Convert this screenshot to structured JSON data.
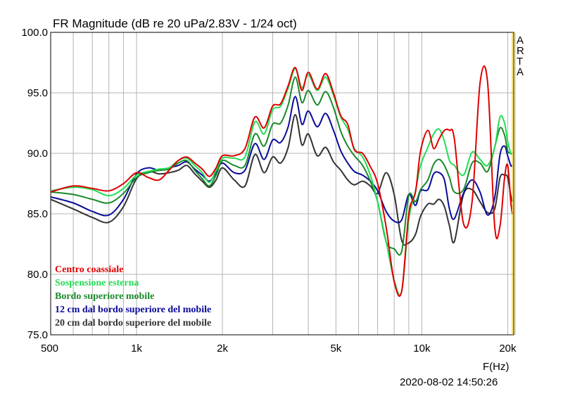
{
  "chart_data": {
    "type": "line",
    "title": "FR Magnitude (dB re 20 uPa/2.83V - 1/24 oct)",
    "xlabel": "F(Hz)",
    "x_scale": "log",
    "xlim": [
      500,
      21000
    ],
    "ylim": [
      75,
      100
    ],
    "x_tick_values": [
      500,
      1000,
      2000,
      5000,
      10000,
      20000
    ],
    "x_tick_labels": [
      "500",
      "1k",
      "2k",
      "5k",
      "10k",
      "20k"
    ],
    "y_tick_values": [
      75,
      80,
      85,
      90,
      95,
      100
    ],
    "y_tick_labels": [
      "75.0",
      "80.0",
      "85.0",
      "90.0",
      "95.0",
      "100.0"
    ],
    "grid": true,
    "legend_position": "bottom-left",
    "watermark": [
      "A",
      "R",
      "T",
      "A"
    ],
    "timestamp": "2020-08-02  14:50:26",
    "series": [
      {
        "name": "Centro coassiale",
        "color": "#e00000",
        "x": [
          500,
          600,
          700,
          800,
          900,
          1000,
          1100,
          1200,
          1300,
          1400,
          1500,
          1600,
          1700,
          1800,
          1900,
          2000,
          2200,
          2400,
          2600,
          2800,
          3000,
          3200,
          3400,
          3600,
          3800,
          4000,
          4300,
          4600,
          4900,
          5200,
          5500,
          5800,
          6200,
          6600,
          7000,
          7500,
          8000,
          8500,
          9000,
          9500,
          9900,
          10500,
          11000,
          11500,
          12000,
          12500,
          13000,
          14000,
          15000,
          16000,
          17000,
          18000,
          18800,
          19500,
          20000,
          20500,
          21000
        ],
        "y": [
          86.8,
          87.3,
          87.1,
          86.9,
          87.5,
          88.4,
          88.0,
          87.8,
          88.6,
          89.4,
          89.7,
          89.2,
          88.7,
          88.1,
          88.8,
          89.8,
          89.8,
          90.4,
          93.0,
          92.1,
          93.9,
          94.1,
          95.6,
          97.1,
          95.2,
          96.7,
          95.3,
          96.6,
          95.0,
          93.1,
          92.4,
          90.3,
          90.0,
          88.9,
          87.5,
          83.9,
          79.4,
          78.6,
          85.0,
          86.8,
          90.2,
          91.9,
          90.4,
          91.2,
          91.9,
          91.9,
          91.2,
          84.2,
          86.0,
          95.8,
          95.9,
          84.0,
          84.0,
          88.0,
          89.0,
          86.0,
          85.0
        ],
        "y_note": "visual trace"
      },
      {
        "name": "Sospensione esterna",
        "color": "#22dd55",
        "x": [
          500,
          600,
          700,
          800,
          900,
          1000,
          1100,
          1200,
          1300,
          1400,
          1500,
          1600,
          1700,
          1800,
          1900,
          2000,
          2200,
          2400,
          2600,
          2800,
          3000,
          3200,
          3400,
          3600,
          3800,
          4000,
          4300,
          4600,
          4900,
          5200,
          5500,
          5800,
          6200,
          6600,
          7000,
          7500,
          8000,
          8500,
          9000,
          9500,
          9900,
          10500,
          11000,
          11500,
          12000,
          12500,
          13000,
          14000,
          15000,
          16000,
          17000,
          18000,
          18800,
          19500,
          20000,
          20500,
          21000
        ],
        "y": [
          86.9,
          87.2,
          87.0,
          86.5,
          87.1,
          88.2,
          88.5,
          88.7,
          88.8,
          89.4,
          89.6,
          89.0,
          88.4,
          87.6,
          88.6,
          89.6,
          89.6,
          89.7,
          92.6,
          91.6,
          93.6,
          93.9,
          95.4,
          97.0,
          95.4,
          96.5,
          95.2,
          96.3,
          94.8,
          93.0,
          92.0,
          90.4,
          89.7,
          88.2,
          86.0,
          82.7,
          79.5,
          78.6,
          84.5,
          86.9,
          89.0,
          90.5,
          91.6,
          92.0,
          91.0,
          89.4,
          89.0,
          88.2,
          90.1,
          89.5,
          89.0,
          90.5,
          93.0,
          92.5,
          91.0,
          90.0,
          90.0
        ],
        "y_note": "visual trace"
      },
      {
        "name": "Bordo superiore mobile",
        "color": "#1a8a2a",
        "x": [
          500,
          600,
          700,
          800,
          900,
          1000,
          1100,
          1200,
          1300,
          1400,
          1500,
          1600,
          1700,
          1800,
          1900,
          2000,
          2200,
          2400,
          2600,
          2800,
          3000,
          3200,
          3400,
          3600,
          3800,
          4000,
          4300,
          4600,
          4900,
          5200,
          5500,
          5800,
          6200,
          6600,
          7000,
          7500,
          8000,
          8500,
          9000,
          9500,
          9900,
          10500,
          11000,
          11500,
          12000,
          12500,
          13000,
          14000,
          15000,
          16000,
          17000,
          18000,
          18800,
          19500,
          20000,
          20500,
          21000
        ],
        "y": [
          86.8,
          86.6,
          86.2,
          85.9,
          86.7,
          88.0,
          88.4,
          88.6,
          88.7,
          89.2,
          89.4,
          88.6,
          87.9,
          87.3,
          88.2,
          89.4,
          89.0,
          89.0,
          91.6,
          90.6,
          92.4,
          92.5,
          94.0,
          96.3,
          94.2,
          95.2,
          94.0,
          95.1,
          93.8,
          91.8,
          90.6,
          89.8,
          89.0,
          87.7,
          86.0,
          82.7,
          82.1,
          81.9,
          86.5,
          86.0,
          87.0,
          87.8,
          89.1,
          89.5,
          89.0,
          88.0,
          86.8,
          87.0,
          89.2,
          89.2,
          88.5,
          90.5,
          92.1,
          91.5,
          90.2,
          90.0,
          90.0
        ],
        "y_note": "visual trace"
      },
      {
        "name": "12 cm dal bordo superiore del mobile",
        "color": "#0a0a9a",
        "x": [
          500,
          600,
          700,
          800,
          900,
          1000,
          1100,
          1200,
          1300,
          1400,
          1500,
          1600,
          1700,
          1800,
          1900,
          2000,
          2200,
          2400,
          2600,
          2800,
          3000,
          3200,
          3400,
          3600,
          3800,
          4000,
          4300,
          4600,
          4900,
          5200,
          5500,
          5800,
          6200,
          6600,
          7000,
          7500,
          8000,
          8500,
          9000,
          9500,
          9900,
          10500,
          11000,
          11500,
          12000,
          12500,
          13000,
          14000,
          15000,
          16000,
          17000,
          18000,
          18800,
          19500,
          20000,
          20500,
          21000
        ],
        "y": [
          86.4,
          85.9,
          85.2,
          84.9,
          86.2,
          88.3,
          88.8,
          88.6,
          88.8,
          89.0,
          89.3,
          88.7,
          88.2,
          87.7,
          88.4,
          89.2,
          88.4,
          88.6,
          90.8,
          89.5,
          91.1,
          90.9,
          92.2,
          94.7,
          92.4,
          93.5,
          92.2,
          93.3,
          91.9,
          90.2,
          89.2,
          88.5,
          88.2,
          87.7,
          86.9,
          85.2,
          84.4,
          84.5,
          86.6,
          85.7,
          86.9,
          87.0,
          88.3,
          88.4,
          87.8,
          85.4,
          84.6,
          86.7,
          87.8,
          86.8,
          84.9,
          86.3,
          89.9,
          90.6,
          89.8,
          89.0,
          89.0
        ],
        "y_note": "visual trace"
      },
      {
        "name": "20 cm dal bordo superiore del mobile",
        "color": "#333333",
        "x": [
          500,
          600,
          700,
          800,
          900,
          1000,
          1100,
          1200,
          1300,
          1400,
          1500,
          1600,
          1700,
          1800,
          1900,
          2000,
          2200,
          2400,
          2600,
          2800,
          3000,
          3200,
          3400,
          3600,
          3800,
          4000,
          4300,
          4600,
          4900,
          5200,
          5500,
          5800,
          6200,
          6600,
          7000,
          7500,
          8000,
          8500,
          9000,
          9500,
          9900,
          10500,
          11000,
          11500,
          12000,
          12500,
          13000,
          14000,
          15000,
          16000,
          17000,
          18000,
          18800,
          19500,
          20000,
          20500,
          21000
        ],
        "y": [
          86.2,
          85.4,
          84.7,
          84.3,
          85.6,
          87.9,
          88.5,
          88.3,
          88.4,
          88.6,
          89.0,
          88.3,
          87.7,
          87.2,
          87.8,
          88.8,
          87.8,
          87.3,
          89.9,
          88.4,
          89.7,
          89.2,
          90.5,
          93.2,
          90.7,
          91.6,
          89.8,
          90.5,
          89.3,
          88.6,
          87.8,
          87.4,
          87.7,
          87.3,
          86.7,
          88.4,
          86.6,
          82.8,
          82.6,
          83.3,
          84.8,
          85.8,
          85.8,
          86.2,
          85.6,
          84.0,
          82.7,
          86.6,
          87.0,
          86.0,
          85.1,
          85.4,
          88.0,
          88.2,
          88.0,
          86.5,
          86.0
        ],
        "y_note": "visual trace"
      }
    ]
  }
}
